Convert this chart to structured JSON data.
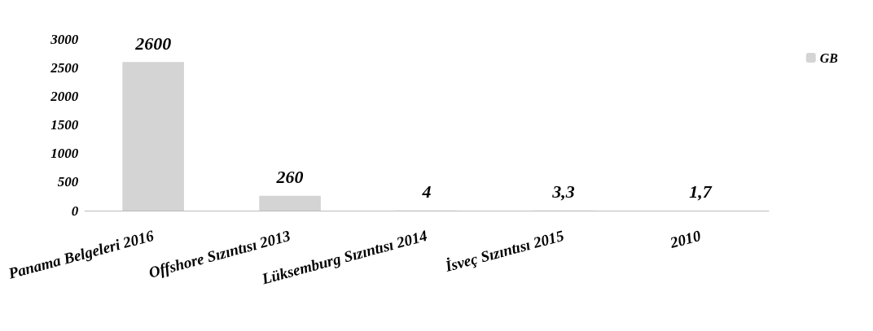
{
  "chart_data": {
    "type": "bar",
    "categories": [
      "Panama Belgeleri 2016",
      "Offshore Sızıntısı 2013",
      "Lüksemburg Sızıntısı 2014",
      "İsveç Sızıntısı 2015",
      "2010"
    ],
    "series": [
      {
        "name": "GB",
        "color": "#d4d4d4",
        "values": [
          2600,
          260,
          4,
          3.3,
          1.7
        ],
        "value_labels": [
          "2600",
          "260",
          "4",
          "3,3",
          "1,7"
        ]
      }
    ],
    "ylim": [
      0,
      3000
    ],
    "yticks": [
      0,
      500,
      1000,
      1500,
      2000,
      2500,
      3000
    ],
    "grid": false,
    "legend": "right"
  }
}
